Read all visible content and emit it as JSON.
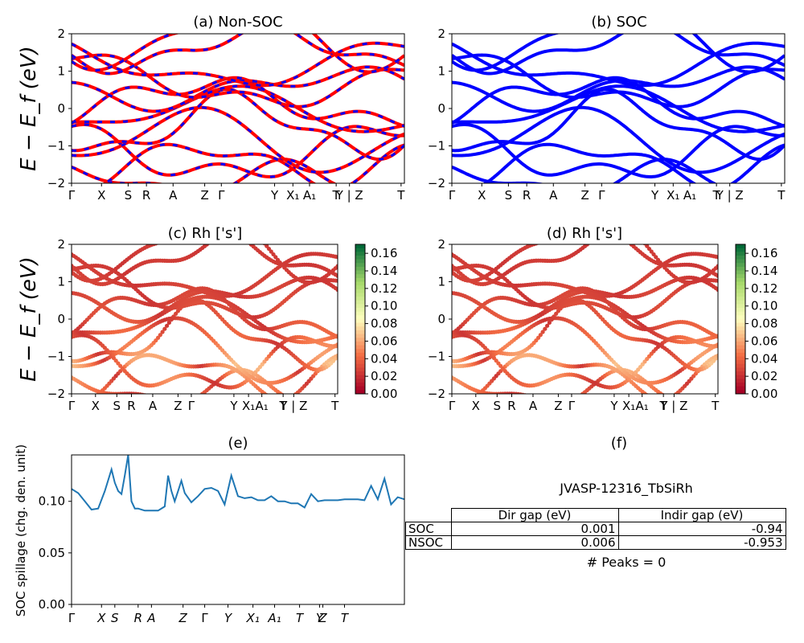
{
  "panels": {
    "a_title": "(a) Non-SOC",
    "b_title": "(b) SOC",
    "c_title": "(c)  Rh ['s']",
    "d_title": "(d) Rh ['s']",
    "e_title": "(e)",
    "f_title": "(f)"
  },
  "axes": {
    "band_ylabel": "E − E_f (eV)",
    "spill_ylabel": "SOC spillage (chg. den. unit)",
    "band_yticks": [
      "2",
      "1",
      "0",
      "−1",
      "−2"
    ],
    "kpath_labels": [
      "Γ",
      "X",
      "S",
      "R",
      "A",
      "Z",
      "Γ",
      "Y",
      "X₁",
      "A₁",
      "T",
      "Y | Z",
      "T"
    ],
    "spill_xticks": [
      "Γ",
      "X",
      "S",
      "R",
      "A",
      "Z",
      "Γ",
      "Y",
      "X₁",
      "A₁",
      "T",
      "Y",
      "Z",
      "T"
    ],
    "spill_yticks": [
      "0.00",
      "0.05",
      "0.10"
    ],
    "colorbar_ticks": [
      "0.16",
      "0.14",
      "0.12",
      "0.10",
      "0.08",
      "0.06",
      "0.04",
      "0.02",
      "0.00"
    ]
  },
  "colors": {
    "nonsoc": "#ff0000",
    "soc": "#0000ff",
    "spill": "#1f77b4"
  },
  "table": {
    "title": "JVASP-12316_TbSiRh",
    "headers": [
      "",
      "Dir gap (eV)",
      "Indir gap (eV)"
    ],
    "rows": [
      {
        "label": "SOC",
        "dir": "0.001",
        "indir": "-0.94"
      },
      {
        "label": "NSOC",
        "dir": "0.006",
        "indir": "-0.953"
      }
    ],
    "peaks": "# Peaks = 0"
  },
  "chart_data": [
    {
      "type": "line",
      "title": "(e)",
      "ylabel": "SOC spillage (chg. den. unit)",
      "ylim": [
        0,
        0.145
      ],
      "x": [
        0,
        2,
        4,
        6,
        8,
        10,
        12,
        13,
        14,
        15,
        16,
        17,
        18,
        19,
        20,
        22,
        24,
        26,
        28,
        29,
        30,
        31,
        32,
        33,
        34,
        36,
        38,
        40,
        42,
        44,
        46,
        48,
        50,
        52,
        54,
        56,
        58,
        60,
        62,
        64,
        66,
        68,
        70,
        72,
        74,
        76,
        78,
        80,
        82,
        84,
        86,
        88,
        90,
        92,
        94,
        96,
        98,
        100
      ],
      "values": [
        0.112,
        0.108,
        0.1,
        0.092,
        0.093,
        0.11,
        0.131,
        0.118,
        0.11,
        0.107,
        0.125,
        0.145,
        0.1,
        0.093,
        0.093,
        0.091,
        0.091,
        0.091,
        0.095,
        0.125,
        0.11,
        0.1,
        0.11,
        0.12,
        0.108,
        0.099,
        0.105,
        0.112,
        0.113,
        0.11,
        0.097,
        0.125,
        0.105,
        0.103,
        0.104,
        0.101,
        0.101,
        0.105,
        0.1,
        0.1,
        0.098,
        0.098,
        0.094,
        0.107,
        0.1,
        0.101,
        0.101,
        0.101,
        0.102,
        0.102,
        0.102,
        0.101,
        0.115,
        0.102,
        0.122,
        0.097,
        0.104,
        0.102
      ],
      "xticks": [
        "Γ",
        "X",
        "S",
        "R",
        "A",
        "Z",
        "Γ",
        "Y",
        "X₁",
        "A₁",
        "T",
        "Y",
        "Z",
        "T"
      ]
    }
  ]
}
